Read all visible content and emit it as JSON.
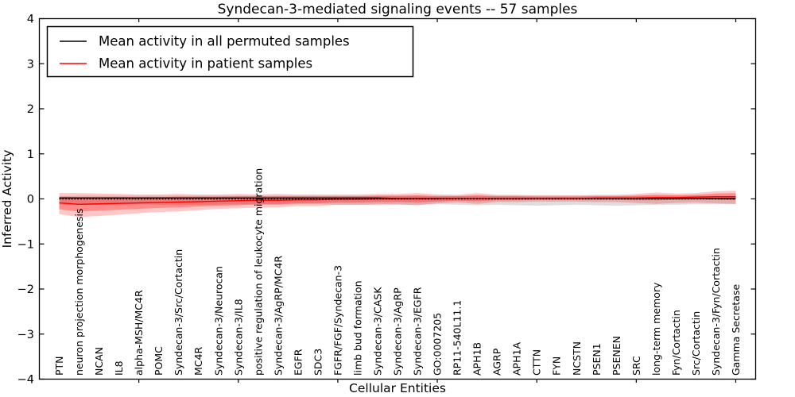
{
  "title": "Syndecan-3-mediated signaling events -- 57 samples",
  "axes": {
    "xlabel": "Cellular Entities",
    "ylabel": "Inferred Activity",
    "ylim": [
      -4,
      4
    ],
    "yticks": [
      {
        "value": 4,
        "label": "4"
      },
      {
        "value": 3,
        "label": "3"
      },
      {
        "value": 2,
        "label": "2"
      },
      {
        "value": 1,
        "label": "1"
      },
      {
        "value": 0,
        "label": "0"
      },
      {
        "value": -1,
        "label": "−1"
      },
      {
        "value": -2,
        "label": "−2"
      },
      {
        "value": -3,
        "label": "−3"
      },
      {
        "value": -4,
        "label": "−4"
      }
    ]
  },
  "legend": {
    "entries": [
      {
        "label": "Mean activity in all permuted samples",
        "color": "#000000"
      },
      {
        "label": "Mean activity in patient samples",
        "color": "#ff0000"
      }
    ]
  },
  "chart_data": {
    "type": "line",
    "title": "Syndecan-3-mediated signaling events -- 57 samples",
    "xlabel": "Cellular Entities",
    "ylabel": "Inferred Activity",
    "ylim": [
      -4,
      4
    ],
    "grid": false,
    "legend_position": "upper left",
    "x_major_ticks": [
      5,
      10,
      15,
      20,
      25,
      30,
      35
    ],
    "categories": [
      "PTN",
      "neuron projection morphogenesis",
      "NCAN",
      "IL8",
      "alpha-MSH/MC4R",
      "POMC",
      "Syndecan-3/Src/Cortactin",
      "MC4R",
      "Syndecan-3/Neurocan",
      "Syndecan-3/IL8",
      "positive regulation of leukocyte migration",
      "Syndecan-3/AgRP/MC4R",
      "EGFR",
      "SDC3",
      "FGFR/FGF/Syndecan-3",
      "limb bud formation",
      "Syndecan-3/CASK",
      "Syndecan-3/AgRP",
      "Syndecan-3/EGFR",
      "GO:0007205",
      "RP11-540L11.1",
      "APH1B",
      "AGRP",
      "APH1A",
      "CTTN",
      "FYN",
      "NCSTN",
      "PSEN1",
      "PSENEN",
      "SRC",
      "long-term memory",
      "Fyn/Cortactin",
      "Src/Cortactin",
      "Syndecan-3/Fyn/Cortactin",
      "Gamma Secretase"
    ],
    "series": [
      {
        "name": "Mean activity in all permuted samples",
        "color": "#000000",
        "style": "solid",
        "values": [
          0.02,
          0.02,
          0.02,
          0.02,
          0.02,
          0.02,
          0.02,
          0.02,
          0.02,
          0.02,
          0.02,
          0.02,
          0.02,
          0.02,
          0.02,
          0.02,
          0.02,
          0.01,
          0.01,
          0.01,
          0.01,
          0.01,
          0.01,
          0.01,
          0.01,
          0.01,
          0.01,
          0.01,
          0.01,
          0.01,
          0.01,
          0.01,
          0.01,
          0.01,
          0.01
        ]
      },
      {
        "name": "Mean activity in patient samples",
        "color": "#ff0000",
        "style": "solid",
        "values": [
          -0.09,
          -0.12,
          -0.11,
          -0.1,
          -0.09,
          -0.08,
          -0.07,
          -0.06,
          -0.05,
          -0.04,
          -0.03,
          -0.03,
          -0.02,
          -0.02,
          -0.01,
          -0.01,
          0.0,
          0.0,
          0.0,
          0.0,
          0.01,
          0.01,
          0.01,
          0.01,
          0.01,
          0.01,
          0.01,
          0.02,
          0.02,
          0.02,
          0.03,
          0.03,
          0.04,
          0.05,
          0.05
        ]
      },
      {
        "name": "zero reference (dotted)",
        "color": "#000000",
        "style": "dotted",
        "constant": 0
      }
    ],
    "bands": [
      {
        "name": "permuted-range",
        "color": "#000000",
        "opacity": 0.13,
        "upper": [
          0.06,
          0.07,
          0.07,
          0.07,
          0.07,
          0.07,
          0.07,
          0.07,
          0.07,
          0.07,
          0.07,
          0.07,
          0.07,
          0.07,
          0.07,
          0.07,
          0.07,
          0.07,
          0.07,
          0.07,
          0.07,
          0.07,
          0.07,
          0.07,
          0.07,
          0.07,
          0.07,
          0.07,
          0.07,
          0.07,
          0.07,
          0.07,
          0.07,
          0.06,
          0.06
        ],
        "lower": [
          -0.12,
          -0.13,
          -0.13,
          -0.12,
          -0.12,
          -0.13,
          -0.14,
          -0.13,
          -0.13,
          -0.12,
          -0.13,
          -0.13,
          -0.12,
          -0.12,
          -0.13,
          -0.13,
          -0.14,
          -0.13,
          -0.13,
          -0.12,
          -0.13,
          -0.14,
          -0.13,
          -0.14,
          -0.15,
          -0.14,
          -0.13,
          -0.14,
          -0.15,
          -0.14,
          -0.13,
          -0.13,
          -0.12,
          -0.12,
          -0.12
        ]
      },
      {
        "name": "patient-outer",
        "color": "#ff0000",
        "opacity": 0.22,
        "upper": [
          0.13,
          0.13,
          0.12,
          0.11,
          0.1,
          0.1,
          0.11,
          0.1,
          0.1,
          0.11,
          0.1,
          0.11,
          0.1,
          0.1,
          0.1,
          0.1,
          0.11,
          0.11,
          0.13,
          0.1,
          0.09,
          0.13,
          0.09,
          0.09,
          0.08,
          0.08,
          0.08,
          0.09,
          0.09,
          0.11,
          0.14,
          0.12,
          0.13,
          0.17,
          0.18
        ],
        "lower": [
          -0.34,
          -0.4,
          -0.38,
          -0.35,
          -0.32,
          -0.29,
          -0.28,
          -0.25,
          -0.22,
          -0.21,
          -0.19,
          -0.19,
          -0.16,
          -0.16,
          -0.13,
          -0.13,
          -0.12,
          -0.12,
          -0.14,
          -0.1,
          -0.08,
          -0.11,
          -0.07,
          -0.07,
          -0.06,
          -0.06,
          -0.06,
          -0.07,
          -0.07,
          -0.09,
          -0.11,
          -0.09,
          -0.08,
          -0.1,
          -0.11
        ]
      },
      {
        "name": "patient-inner",
        "color": "#ff0000",
        "opacity": 0.3,
        "upper": [
          0.05,
          0.04,
          0.04,
          0.04,
          0.04,
          0.04,
          0.05,
          0.05,
          0.05,
          0.06,
          0.06,
          0.06,
          0.06,
          0.06,
          0.06,
          0.06,
          0.07,
          0.07,
          0.08,
          0.06,
          0.06,
          0.08,
          0.06,
          0.06,
          0.05,
          0.05,
          0.05,
          0.06,
          0.06,
          0.07,
          0.09,
          0.08,
          0.09,
          0.12,
          0.13
        ],
        "lower": [
          -0.23,
          -0.28,
          -0.26,
          -0.24,
          -0.22,
          -0.2,
          -0.19,
          -0.17,
          -0.15,
          -0.14,
          -0.12,
          -0.12,
          -0.1,
          -0.1,
          -0.08,
          -0.08,
          -0.07,
          -0.07,
          -0.08,
          -0.06,
          -0.04,
          -0.05,
          -0.03,
          -0.03,
          -0.02,
          -0.02,
          -0.02,
          -0.02,
          -0.02,
          -0.03,
          -0.03,
          -0.02,
          -0.01,
          -0.02,
          -0.03
        ]
      }
    ]
  }
}
